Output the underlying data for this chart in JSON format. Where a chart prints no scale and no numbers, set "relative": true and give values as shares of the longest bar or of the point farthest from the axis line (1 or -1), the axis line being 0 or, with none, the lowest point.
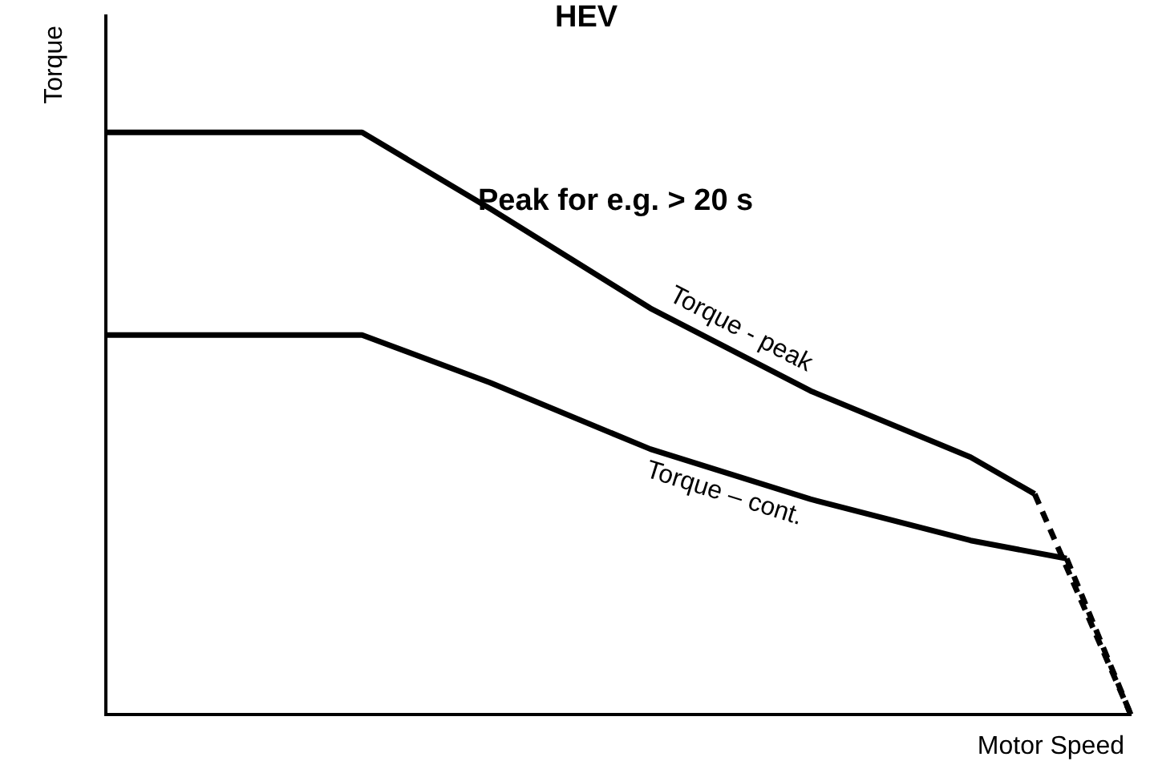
{
  "chart_data": {
    "type": "line",
    "title": "HEV",
    "xlabel": "Motor Speed",
    "ylabel": "Torque",
    "relative": true,
    "legend": false,
    "grid": false,
    "marker": "none",
    "annotations": [
      "Peak for e.g. > 20 s"
    ],
    "categories": [
      null,
      null,
      null,
      null,
      null,
      null,
      null,
      null,
      null,
      null,
      null,
      null,
      null,
      null,
      null,
      null,
      null,
      null,
      null,
      null,
      null,
      null,
      null,
      null,
      null,
      null,
      null,
      null,
      null,
      null,
      null,
      null,
      null
    ],
    "series": [
      {
        "name": "Torque - peak",
        "color": "#000000",
        "line_style": "solid",
        "values": [
          1,
          null,
          null,
          null,
          null,
          null,
          null,
          null,
          1,
          null,
          null,
          null,
          0.869,
          null,
          null,
          null,
          null,
          0.698,
          null,
          null,
          null,
          null,
          0.556,
          null,
          null,
          null,
          null,
          0.442,
          null,
          0.379,
          null,
          null,
          null
        ]
      },
      {
        "name": "Torque – cont.",
        "color": "#000000",
        "line_style": "solid",
        "values": [
          0.652,
          null,
          null,
          null,
          null,
          null,
          null,
          null,
          0.652,
          null,
          null,
          null,
          0.57,
          null,
          null,
          null,
          null,
          0.456,
          null,
          null,
          null,
          null,
          0.37,
          null,
          null,
          null,
          null,
          0.299,
          null,
          null,
          0.268,
          null,
          null
        ]
      },
      {
        "color": "#000000",
        "line_style": "dashed",
        "values": [
          null,
          null,
          null,
          null,
          null,
          null,
          null,
          null,
          null,
          null,
          null,
          null,
          null,
          null,
          null,
          null,
          null,
          null,
          null,
          null,
          null,
          null,
          null,
          null,
          null,
          null,
          null,
          null,
          null,
          0.379,
          null,
          null,
          0
        ]
      },
      {
        "color": "#000000",
        "line_style": "dashed",
        "values": [
          null,
          null,
          null,
          null,
          null,
          null,
          null,
          null,
          null,
          null,
          null,
          null,
          null,
          null,
          null,
          null,
          null,
          null,
          null,
          null,
          null,
          null,
          null,
          null,
          null,
          null,
          null,
          null,
          null,
          null,
          0.268,
          null,
          0
        ]
      }
    ]
  }
}
